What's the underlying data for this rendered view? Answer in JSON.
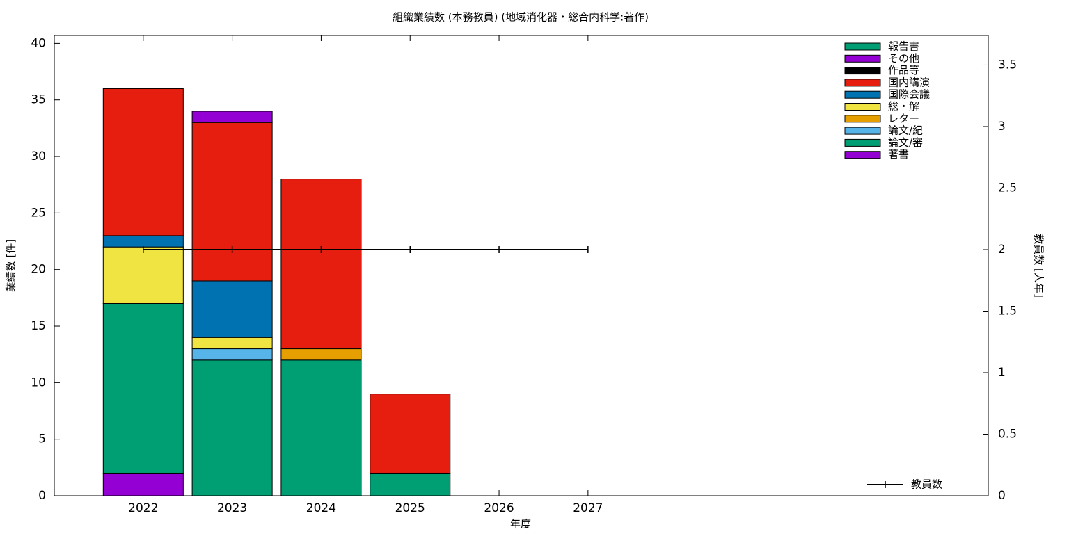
{
  "chart_data": {
    "type": "bar",
    "stacked": true,
    "title": "組織業績数 (本務教員) (地域消化器・総合内科学:著作)",
    "xlabel": "年度",
    "ylabel": "業績数 [件]",
    "y2label": "教員数 [人年]",
    "x": [
      2022,
      2023,
      2024,
      2025,
      2026,
      2027
    ],
    "xlim": [
      2021,
      2031.5
    ],
    "xticks": [
      2022,
      2023,
      2024,
      2025,
      2026,
      2027
    ],
    "ylim": [
      0,
      40.7
    ],
    "yticks": [
      0,
      5,
      10,
      15,
      20,
      25,
      30,
      35,
      40
    ],
    "y2lim": [
      0,
      3.74
    ],
    "y2ticks": [
      0,
      0.5,
      1,
      1.5,
      2,
      2.5,
      3,
      3.5
    ],
    "series": [
      {
        "name": "報告書",
        "color": "#009e73",
        "values": [
          0,
          0,
          0,
          0,
          0,
          0
        ]
      },
      {
        "name": "その他",
        "color": "#9400d3",
        "values": [
          0,
          1,
          0,
          0,
          0,
          0
        ]
      },
      {
        "name": "作品等",
        "color": "#000000",
        "values": [
          0,
          0,
          0,
          0,
          0,
          0
        ]
      },
      {
        "name": "国内講演",
        "color": "#e51e10",
        "values": [
          13,
          14,
          15,
          7,
          0,
          0
        ]
      },
      {
        "name": "国際会議",
        "color": "#0072b2",
        "values": [
          1,
          5,
          0,
          0,
          0,
          0
        ]
      },
      {
        "name": "総・解",
        "color": "#f0e442",
        "values": [
          5,
          1,
          0,
          0,
          0,
          0
        ]
      },
      {
        "name": "レター",
        "color": "#e69f00",
        "values": [
          0,
          0,
          1,
          0,
          0,
          0
        ]
      },
      {
        "name": "論文/紀",
        "color": "#56b4e9",
        "values": [
          0,
          1,
          0,
          0,
          0,
          0
        ]
      },
      {
        "name": "論文/審",
        "color": "#009e73",
        "values": [
          15,
          12,
          12,
          2,
          0,
          0
        ]
      },
      {
        "name": "著書",
        "color": "#9400d3",
        "values": [
          2,
          0,
          0,
          0,
          0,
          0
        ]
      },
      {
        "name": "教員数",
        "color": "#000000",
        "type": "line",
        "axis": "y2",
        "values": [
          2,
          2,
          2,
          2,
          2,
          2
        ]
      }
    ]
  }
}
